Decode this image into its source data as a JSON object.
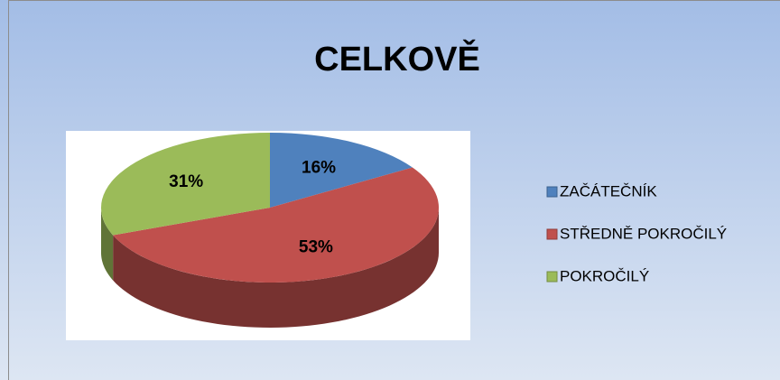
{
  "chart_data": {
    "type": "pie",
    "title": "CELKOVĚ",
    "categories": [
      "ZAČÁTEČNÍK",
      "STŘEDNĚ POKROČILÝ",
      "POKROČILÝ"
    ],
    "values": [
      16,
      53,
      31
    ],
    "value_labels": [
      "16%",
      "53%",
      "31%"
    ],
    "colors": [
      "#4f81bd",
      "#c0504d",
      "#9bbb59"
    ],
    "legend": "right"
  }
}
